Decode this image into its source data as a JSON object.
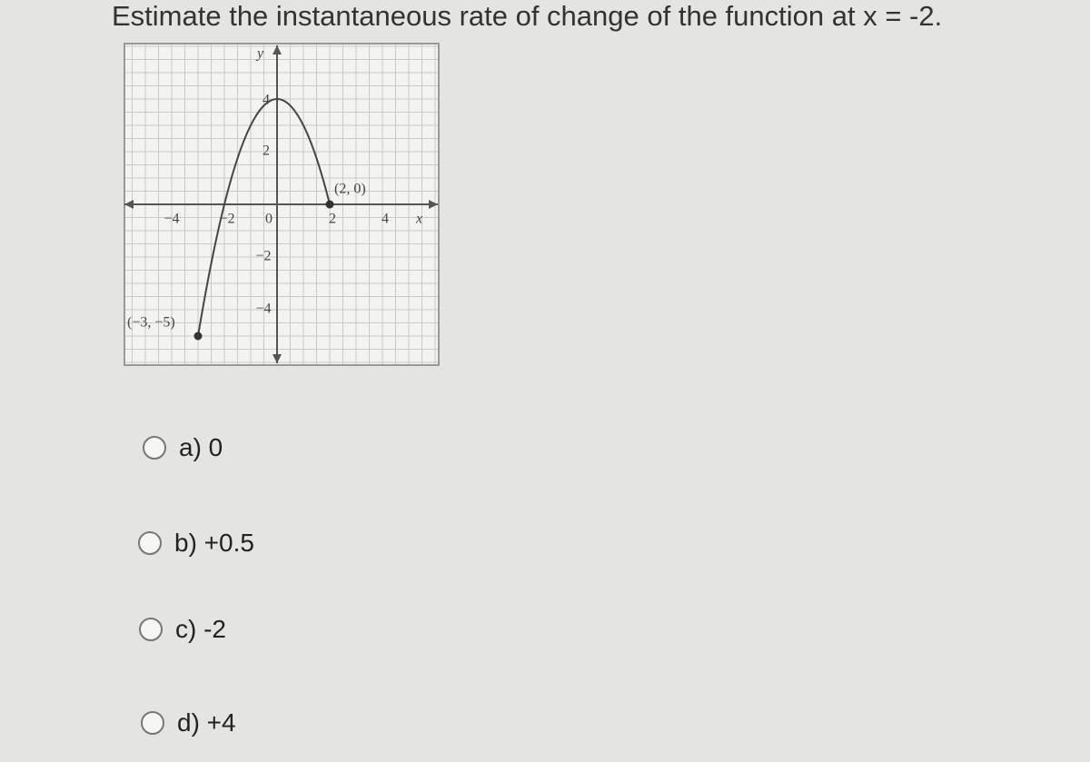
{
  "question": "Estimate the instantaneous rate of change of the function at x = -2.",
  "graph": {
    "axis_labels": {
      "x": "x",
      "y": "y"
    },
    "x_tick_labels": [
      "−4",
      "−2",
      "0",
      "2",
      "4"
    ],
    "y_tick_labels": [
      "4",
      "2",
      "−2",
      "−4"
    ],
    "point_labels": [
      "(2, 0)",
      "(−3, −5)"
    ]
  },
  "options": [
    "a) 0",
    "b) +0.5",
    "c) -2",
    "d) +4"
  ]
}
